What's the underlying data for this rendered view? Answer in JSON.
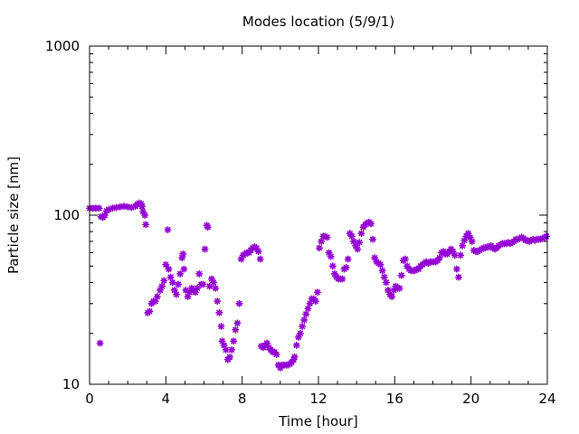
{
  "chart_data": {
    "type": "scatter",
    "title": "Modes location (5/9/1)",
    "xlabel": "Time [hour]",
    "ylabel": "Particle size [nm]",
    "xlim": [
      0,
      24
    ],
    "ylim": [
      10,
      1000
    ],
    "y_scale": "log",
    "grid": false,
    "legend": "none",
    "marker": "asterisk",
    "marker_color": "#9400d3",
    "xticks": [
      {
        "value": 0,
        "label": "0"
      },
      {
        "value": 4,
        "label": "4"
      },
      {
        "value": 8,
        "label": "8"
      },
      {
        "value": 12,
        "label": "12"
      },
      {
        "value": 16,
        "label": "16"
      },
      {
        "value": 20,
        "label": "20"
      },
      {
        "value": 24,
        "label": "24"
      }
    ],
    "yticks": [
      {
        "value": 10,
        "label": "10"
      },
      {
        "value": 100,
        "label": "100"
      },
      {
        "value": 1000,
        "label": "1000"
      }
    ],
    "series": [
      {
        "points": [
          [
            0.0,
            110
          ],
          [
            0.17,
            110
          ],
          [
            0.33,
            110
          ],
          [
            0.5,
            110
          ],
          [
            0.55,
            17.5
          ],
          [
            0.6,
            98
          ],
          [
            0.7,
            97
          ],
          [
            0.8,
            100
          ],
          [
            0.9,
            106
          ],
          [
            1.0,
            108
          ],
          [
            1.2,
            110
          ],
          [
            1.4,
            111
          ],
          [
            1.6,
            112
          ],
          [
            1.8,
            113
          ],
          [
            2.0,
            112
          ],
          [
            2.2,
            111
          ],
          [
            2.4,
            113
          ],
          [
            2.5,
            116
          ],
          [
            2.6,
            118
          ],
          [
            2.7,
            117
          ],
          [
            2.75,
            113
          ],
          [
            2.8,
            105
          ],
          [
            2.9,
            100
          ],
          [
            2.95,
            88
          ],
          [
            3.05,
            26.5
          ],
          [
            3.15,
            27
          ],
          [
            3.25,
            30
          ],
          [
            3.35,
            31
          ],
          [
            3.45,
            31
          ],
          [
            3.55,
            33
          ],
          [
            3.7,
            36
          ],
          [
            3.8,
            38
          ],
          [
            3.9,
            41
          ],
          [
            4.0,
            51
          ],
          [
            4.1,
            82
          ],
          [
            4.15,
            48
          ],
          [
            4.25,
            43
          ],
          [
            4.35,
            40
          ],
          [
            4.45,
            36
          ],
          [
            4.55,
            34
          ],
          [
            4.65,
            39
          ],
          [
            4.75,
            45
          ],
          [
            4.85,
            56
          ],
          [
            4.9,
            59
          ],
          [
            4.95,
            48
          ],
          [
            5.05,
            36
          ],
          [
            5.15,
            33
          ],
          [
            5.25,
            35
          ],
          [
            5.35,
            37
          ],
          [
            5.45,
            36
          ],
          [
            5.55,
            35
          ],
          [
            5.65,
            37
          ],
          [
            5.75,
            45
          ],
          [
            5.85,
            39
          ],
          [
            5.95,
            39
          ],
          [
            6.05,
            63
          ],
          [
            6.15,
            87
          ],
          [
            6.2,
            85
          ],
          [
            6.3,
            38
          ],
          [
            6.4,
            42
          ],
          [
            6.5,
            40
          ],
          [
            6.6,
            37
          ],
          [
            6.7,
            31
          ],
          [
            6.8,
            26.5
          ],
          [
            6.9,
            22
          ],
          [
            6.95,
            18
          ],
          [
            7.05,
            17
          ],
          [
            7.15,
            16
          ],
          [
            7.25,
            14
          ],
          [
            7.35,
            14.5
          ],
          [
            7.45,
            16
          ],
          [
            7.55,
            18
          ],
          [
            7.65,
            21
          ],
          [
            7.75,
            23
          ],
          [
            7.85,
            30
          ],
          [
            7.95,
            55
          ],
          [
            8.05,
            58
          ],
          [
            8.15,
            59
          ],
          [
            8.25,
            60
          ],
          [
            8.35,
            60
          ],
          [
            8.45,
            62
          ],
          [
            8.55,
            64
          ],
          [
            8.65,
            65
          ],
          [
            8.75,
            64
          ],
          [
            8.85,
            61
          ],
          [
            8.95,
            55
          ],
          [
            9.0,
            16.8
          ],
          [
            9.1,
            16.5
          ],
          [
            9.2,
            17
          ],
          [
            9.3,
            17.5
          ],
          [
            9.4,
            16.5
          ],
          [
            9.5,
            16
          ],
          [
            9.6,
            15.5
          ],
          [
            9.7,
            15.5
          ],
          [
            9.8,
            15
          ],
          [
            9.9,
            13
          ],
          [
            10.0,
            12.5
          ],
          [
            10.1,
            13
          ],
          [
            10.2,
            13
          ],
          [
            10.3,
            13
          ],
          [
            10.4,
            13
          ],
          [
            10.5,
            13.2
          ],
          [
            10.6,
            13.5
          ],
          [
            10.7,
            14
          ],
          [
            10.75,
            14.5
          ],
          [
            10.85,
            17
          ],
          [
            10.95,
            19
          ],
          [
            11.05,
            20
          ],
          [
            11.15,
            22
          ],
          [
            11.25,
            24
          ],
          [
            11.35,
            26
          ],
          [
            11.45,
            28
          ],
          [
            11.55,
            30
          ],
          [
            11.65,
            32
          ],
          [
            11.75,
            32
          ],
          [
            11.85,
            31
          ],
          [
            11.95,
            35
          ],
          [
            12.05,
            64
          ],
          [
            12.15,
            70
          ],
          [
            12.25,
            75
          ],
          [
            12.35,
            75
          ],
          [
            12.45,
            74
          ],
          [
            12.55,
            60
          ],
          [
            12.65,
            57
          ],
          [
            12.75,
            50
          ],
          [
            12.85,
            45
          ],
          [
            12.95,
            43
          ],
          [
            13.05,
            42
          ],
          [
            13.15,
            42
          ],
          [
            13.25,
            42
          ],
          [
            13.35,
            48
          ],
          [
            13.45,
            49
          ],
          [
            13.55,
            55
          ],
          [
            13.65,
            78
          ],
          [
            13.75,
            75
          ],
          [
            13.85,
            70
          ],
          [
            13.95,
            66
          ],
          [
            14.05,
            63
          ],
          [
            14.15,
            69
          ],
          [
            14.25,
            78
          ],
          [
            14.35,
            85
          ],
          [
            14.45,
            88
          ],
          [
            14.55,
            90
          ],
          [
            14.65,
            91
          ],
          [
            14.75,
            89
          ],
          [
            14.85,
            72
          ],
          [
            14.95,
            56
          ],
          [
            15.05,
            53
          ],
          [
            15.15,
            52
          ],
          [
            15.25,
            51
          ],
          [
            15.35,
            47
          ],
          [
            15.45,
            43
          ],
          [
            15.55,
            40
          ],
          [
            15.65,
            36
          ],
          [
            15.75,
            34
          ],
          [
            15.85,
            33
          ],
          [
            15.95,
            36
          ],
          [
            16.05,
            38
          ],
          [
            16.15,
            37
          ],
          [
            16.25,
            37
          ],
          [
            16.35,
            44
          ],
          [
            16.45,
            54
          ],
          [
            16.55,
            55
          ],
          [
            16.65,
            50
          ],
          [
            16.75,
            48
          ],
          [
            16.85,
            47
          ],
          [
            16.95,
            47
          ],
          [
            17.05,
            47
          ],
          [
            17.15,
            48
          ],
          [
            17.25,
            48
          ],
          [
            17.35,
            50
          ],
          [
            17.45,
            51
          ],
          [
            17.55,
            52
          ],
          [
            17.65,
            53
          ],
          [
            17.75,
            52
          ],
          [
            17.85,
            53
          ],
          [
            17.95,
            53
          ],
          [
            18.05,
            53
          ],
          [
            18.15,
            53
          ],
          [
            18.25,
            54
          ],
          [
            18.35,
            56
          ],
          [
            18.45,
            60
          ],
          [
            18.55,
            61
          ],
          [
            18.65,
            59
          ],
          [
            18.75,
            59
          ],
          [
            18.85,
            61
          ],
          [
            18.95,
            63
          ],
          [
            19.05,
            61
          ],
          [
            19.15,
            58
          ],
          [
            19.25,
            48
          ],
          [
            19.35,
            43
          ],
          [
            19.45,
            58
          ],
          [
            19.55,
            66
          ],
          [
            19.65,
            71
          ],
          [
            19.75,
            75
          ],
          [
            19.85,
            78
          ],
          [
            19.95,
            74
          ],
          [
            20.05,
            70
          ],
          [
            20.15,
            62
          ],
          [
            20.25,
            61
          ],
          [
            20.35,
            61
          ],
          [
            20.45,
            62
          ],
          [
            20.55,
            63
          ],
          [
            20.65,
            64
          ],
          [
            20.75,
            64
          ],
          [
            20.85,
            65
          ],
          [
            20.95,
            65
          ],
          [
            21.05,
            66
          ],
          [
            21.15,
            64
          ],
          [
            21.25,
            63
          ],
          [
            21.35,
            64
          ],
          [
            21.45,
            66
          ],
          [
            21.55,
            67
          ],
          [
            21.65,
            68
          ],
          [
            21.75,
            68
          ],
          [
            21.85,
            68
          ],
          [
            21.95,
            69
          ],
          [
            22.05,
            68
          ],
          [
            22.15,
            69
          ],
          [
            22.25,
            70
          ],
          [
            22.35,
            72
          ],
          [
            22.45,
            72
          ],
          [
            22.55,
            73
          ],
          [
            22.65,
            74
          ],
          [
            22.75,
            73
          ],
          [
            22.85,
            71
          ],
          [
            22.95,
            71
          ],
          [
            23.05,
            70
          ],
          [
            23.15,
            71
          ],
          [
            23.25,
            72
          ],
          [
            23.35,
            71
          ],
          [
            23.45,
            72
          ],
          [
            23.55,
            72
          ],
          [
            23.65,
            72
          ],
          [
            23.75,
            73
          ],
          [
            23.85,
            74
          ],
          [
            23.95,
            75
          ]
        ]
      }
    ]
  }
}
